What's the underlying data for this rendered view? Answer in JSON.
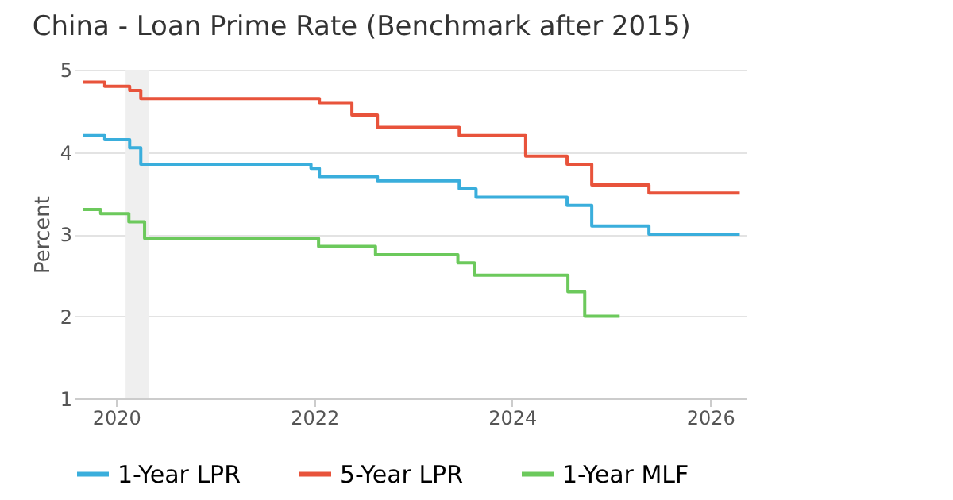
{
  "chart_data": {
    "type": "step",
    "title": "China - Loan Prime Rate (Benchmark after 2015)",
    "ylabel": "Percent",
    "xlim": [
      "2019-08-01",
      "2026-05-15"
    ],
    "xticks": [
      "2020",
      "2022",
      "2024",
      "2026"
    ],
    "ylim": [
      1,
      5
    ],
    "yticks": [
      1,
      2,
      3,
      4,
      5
    ],
    "grid": "y",
    "legend": "bottom",
    "line_style": "solid",
    "marker": "none",
    "bands": [
      {
        "axis": "x",
        "from": "2020-02-05",
        "to": "2020-04-30",
        "color": "#efefef"
      }
    ],
    "series": [
      {
        "name": "1-Year LPR",
        "color": "#3aaedc",
        "x": [
          "2019-09-01",
          "2019-10-20",
          "2019-11-20",
          "2020-02-20",
          "2020-04-01",
          "2021-12-20",
          "2022-01-20",
          "2022-08-22",
          "2023-06-20",
          "2023-08-21",
          "2024-07-22",
          "2024-10-21",
          "2025-05-20",
          "2026-04-20"
        ],
        "values": [
          4.2,
          4.2,
          4.15,
          4.05,
          3.85,
          3.8,
          3.7,
          3.65,
          3.55,
          3.45,
          3.35,
          3.1,
          3.0,
          3.0
        ]
      },
      {
        "name": "5-Year LPR",
        "color": "#e8533b",
        "x": [
          "2019-09-01",
          "2019-11-20",
          "2020-02-20",
          "2020-04-01",
          "2022-01-20",
          "2022-05-20",
          "2022-08-22",
          "2023-06-20",
          "2024-02-20",
          "2024-07-22",
          "2024-10-21",
          "2025-05-20",
          "2026-04-20"
        ],
        "values": [
          4.85,
          4.8,
          4.75,
          4.65,
          4.6,
          4.45,
          4.3,
          4.2,
          3.95,
          3.85,
          3.6,
          3.5,
          3.5
        ]
      },
      {
        "name": "1-Year MLF",
        "color": "#6cc95c",
        "x": [
          "2019-09-01",
          "2019-11-05",
          "2020-02-17",
          "2020-04-15",
          "2022-01-17",
          "2022-08-15",
          "2023-06-15",
          "2023-08-15",
          "2024-07-25",
          "2024-09-25",
          "2025-02-01"
        ],
        "values": [
          3.3,
          3.25,
          3.15,
          2.95,
          2.85,
          2.75,
          2.65,
          2.5,
          2.3,
          2.0,
          2.0
        ]
      }
    ]
  }
}
